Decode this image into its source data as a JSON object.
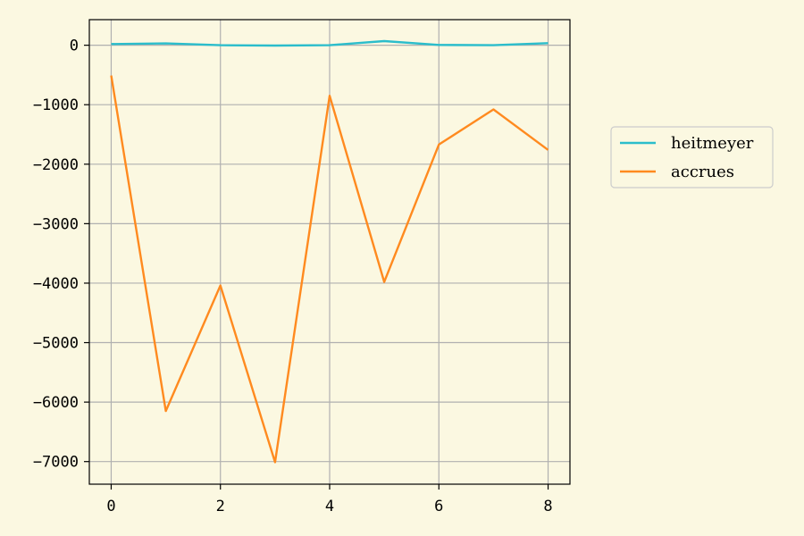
{
  "colors": {
    "background": "#fbf8e1",
    "grid": "#b0b0b0",
    "axis": "#000000",
    "legend_bg": "#fbf8e1",
    "legend_border": "#cccccc"
  },
  "chart_data": {
    "type": "line",
    "title": "",
    "xlabel": "",
    "ylabel": "",
    "x": [
      0,
      1,
      2,
      3,
      4,
      5,
      6,
      7,
      8
    ],
    "xlim": [
      -0.4,
      8.4
    ],
    "ylim": [
      -7380,
      430
    ],
    "xticks": [
      0,
      2,
      4,
      6,
      8
    ],
    "yticks": [
      0,
      -1000,
      -2000,
      -3000,
      -4000,
      -5000,
      -6000,
      -7000
    ],
    "x_tick_labels": [
      "0",
      "2",
      "4",
      "6",
      "8"
    ],
    "y_tick_labels": [
      "0",
      "−1000",
      "−2000",
      "−3000",
      "−4000",
      "−5000",
      "−6000",
      "−7000"
    ],
    "grid": true,
    "legend_position": "right, outside plot",
    "series": [
      {
        "name": "heitmeyer",
        "color": "#2bbdcb",
        "values": [
          20,
          30,
          0,
          -5,
          0,
          70,
          5,
          0,
          35
        ]
      },
      {
        "name": "accrues",
        "color": "#ff8a1f",
        "values": [
          -510,
          -6150,
          -4040,
          -7010,
          -850,
          -3980,
          -1670,
          -1080,
          -1760
        ]
      }
    ]
  }
}
